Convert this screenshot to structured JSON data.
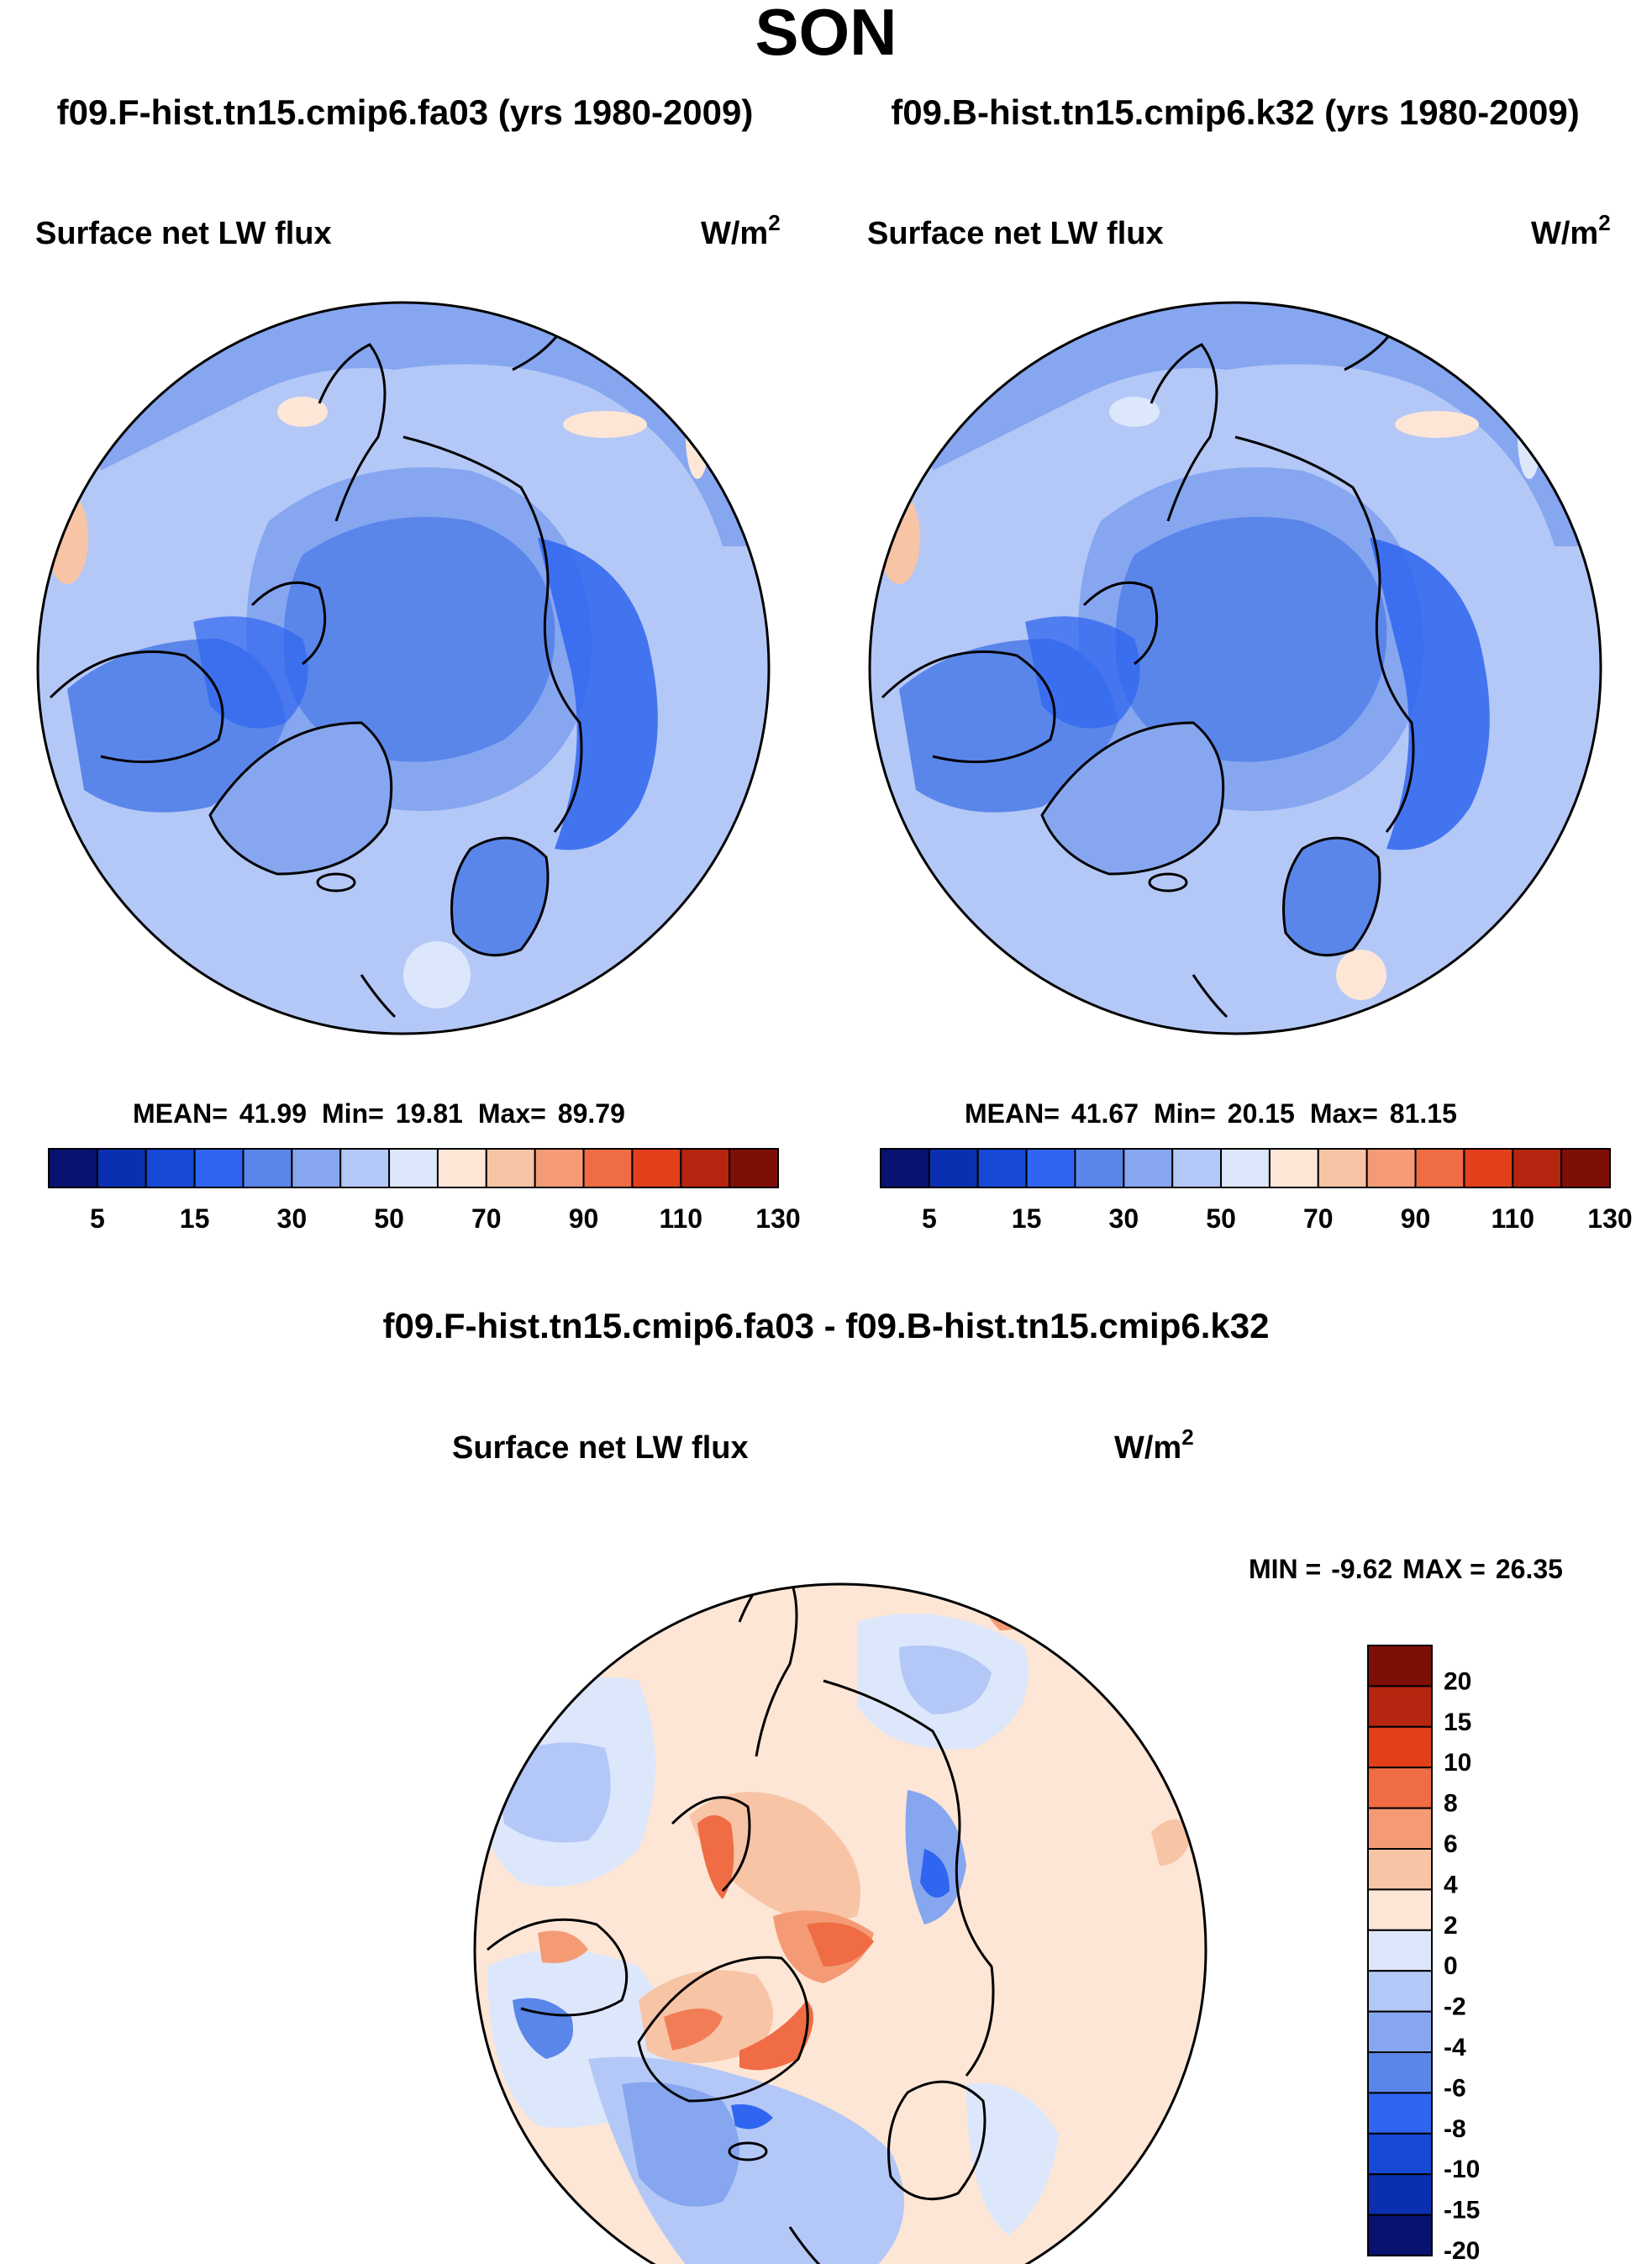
{
  "title": "SON",
  "subtitle_left": "f09.F-hist.tn15.cmip6.fa03 (yrs 1980-2009)",
  "subtitle_right": "f09.B-hist.tn15.cmip6.k32 (yrs 1980-2009)",
  "diff_title": "f09.F-hist.tn15.cmip6.fa03 - f09.B-hist.tn15.cmip6.k32",
  "units_base": "W/m",
  "units_exp": "2",
  "colors": {
    "abs_levels": [
      "#08126f",
      "#0a2fb0",
      "#1549d6",
      "#2f65ef",
      "#5a86ea",
      "#86a6f0",
      "#b4c8f7",
      "#dde7fb",
      "#fde6d6",
      "#f8c4a6",
      "#f49b76",
      "#ef6c44",
      "#e1401a",
      "#b6250f",
      "#7e0f07"
    ],
    "diff_levels": [
      "#08126f",
      "#0a2fb0",
      "#1549d6",
      "#2f65ef",
      "#5a86ea",
      "#86a6f0",
      "#b4c8f7",
      "#dde7fb",
      "#fde6d6",
      "#f8c4a6",
      "#f49b76",
      "#ef6c44",
      "#e1401a",
      "#b6250f",
      "#7e0f07"
    ],
    "land_line": "#000000"
  },
  "chart_data": [
    {
      "type": "heatmap",
      "projection": "north-polar-stereographic",
      "title": "Surface net LW flux",
      "units": "W/m2",
      "stats": {
        "mean_label": "MEAN=",
        "mean": "41.99",
        "min_label": "Min=",
        "min": "19.81",
        "max_label": "Max=",
        "max": "89.79"
      },
      "colorbar_ticks": [
        "5",
        "15",
        "30",
        "50",
        "70",
        "90",
        "110",
        "130"
      ],
      "colorbar_levels": 16
    },
    {
      "type": "heatmap",
      "projection": "north-polar-stereographic",
      "title": "Surface net LW flux",
      "units": "W/m2",
      "stats": {
        "mean_label": "MEAN=",
        "mean": "41.67",
        "min_label": "Min=",
        "min": "20.15",
        "max_label": "Max=",
        "max": "81.15"
      },
      "colorbar_ticks": [
        "5",
        "15",
        "30",
        "50",
        "70",
        "90",
        "110",
        "130"
      ],
      "colorbar_levels": 16
    },
    {
      "type": "heatmap",
      "projection": "north-polar-stereographic",
      "title": "Surface net LW flux",
      "units": "W/m2",
      "stats": {
        "min_label": "MIN =",
        "min": "-9.62",
        "max_label": "MAX =",
        "max": "26.35"
      },
      "colorbar_ticks": [
        "20",
        "15",
        "10",
        "8",
        "6",
        "4",
        "2",
        "0",
        "-2",
        "-4",
        "-6",
        "-8",
        "-10",
        "-15",
        "-20"
      ],
      "colorbar_levels": 16
    }
  ]
}
